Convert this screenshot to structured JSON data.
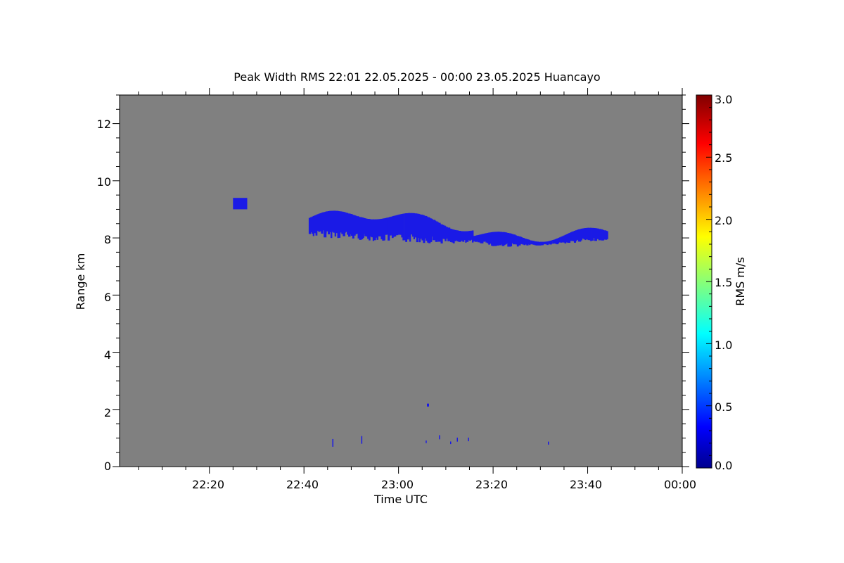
{
  "chart_data": {
    "type": "heatmap",
    "title": "Peak Width RMS   22:01 22.05.2025 - 00:00 23.05.2025 Huancayo",
    "xlabel": "Time UTC",
    "ylabel": "Range km",
    "xlim": [
      "22:01",
      "00:00"
    ],
    "ylim": [
      0,
      13
    ],
    "x_ticks": [
      "22:20",
      "22:40",
      "23:00",
      "23:20",
      "23:40",
      "00:00"
    ],
    "y_ticks": [
      "0",
      "2",
      "4",
      "6",
      "8",
      "10",
      "12"
    ],
    "colorbar": {
      "label": "RMS m/s",
      "range": [
        0.0,
        3.0
      ],
      "ticks": [
        "0.0",
        "0.5",
        "1.0",
        "1.5",
        "2.0",
        "2.5",
        "3.0"
      ],
      "colormap": "jet"
    },
    "background_color": "#808080",
    "echo_color": "#1a1ae6",
    "echoes": [
      {
        "name": "cloud-layer",
        "t_start": "22:41",
        "t_end": "23:44",
        "range_bottom_km": 7.6,
        "range_top_km": 9.1,
        "rms_m_s": 0.3
      },
      {
        "name": "isolated-patch",
        "t_start": "22:25",
        "t_end": "22:28",
        "range_bottom_km": 9.0,
        "range_top_km": 9.4,
        "rms_m_s": 0.3
      },
      {
        "name": "near-surface-specks",
        "t_start": "22:46",
        "t_end": "23:33",
        "range_bottom_km": 0.5,
        "range_top_km": 1.1,
        "rms_m_s": 0.3
      },
      {
        "name": "speck-2km",
        "t_start": "23:06",
        "t_end": "23:06",
        "range_bottom_km": 2.1,
        "range_top_km": 2.2,
        "rms_m_s": 0.4
      }
    ]
  }
}
